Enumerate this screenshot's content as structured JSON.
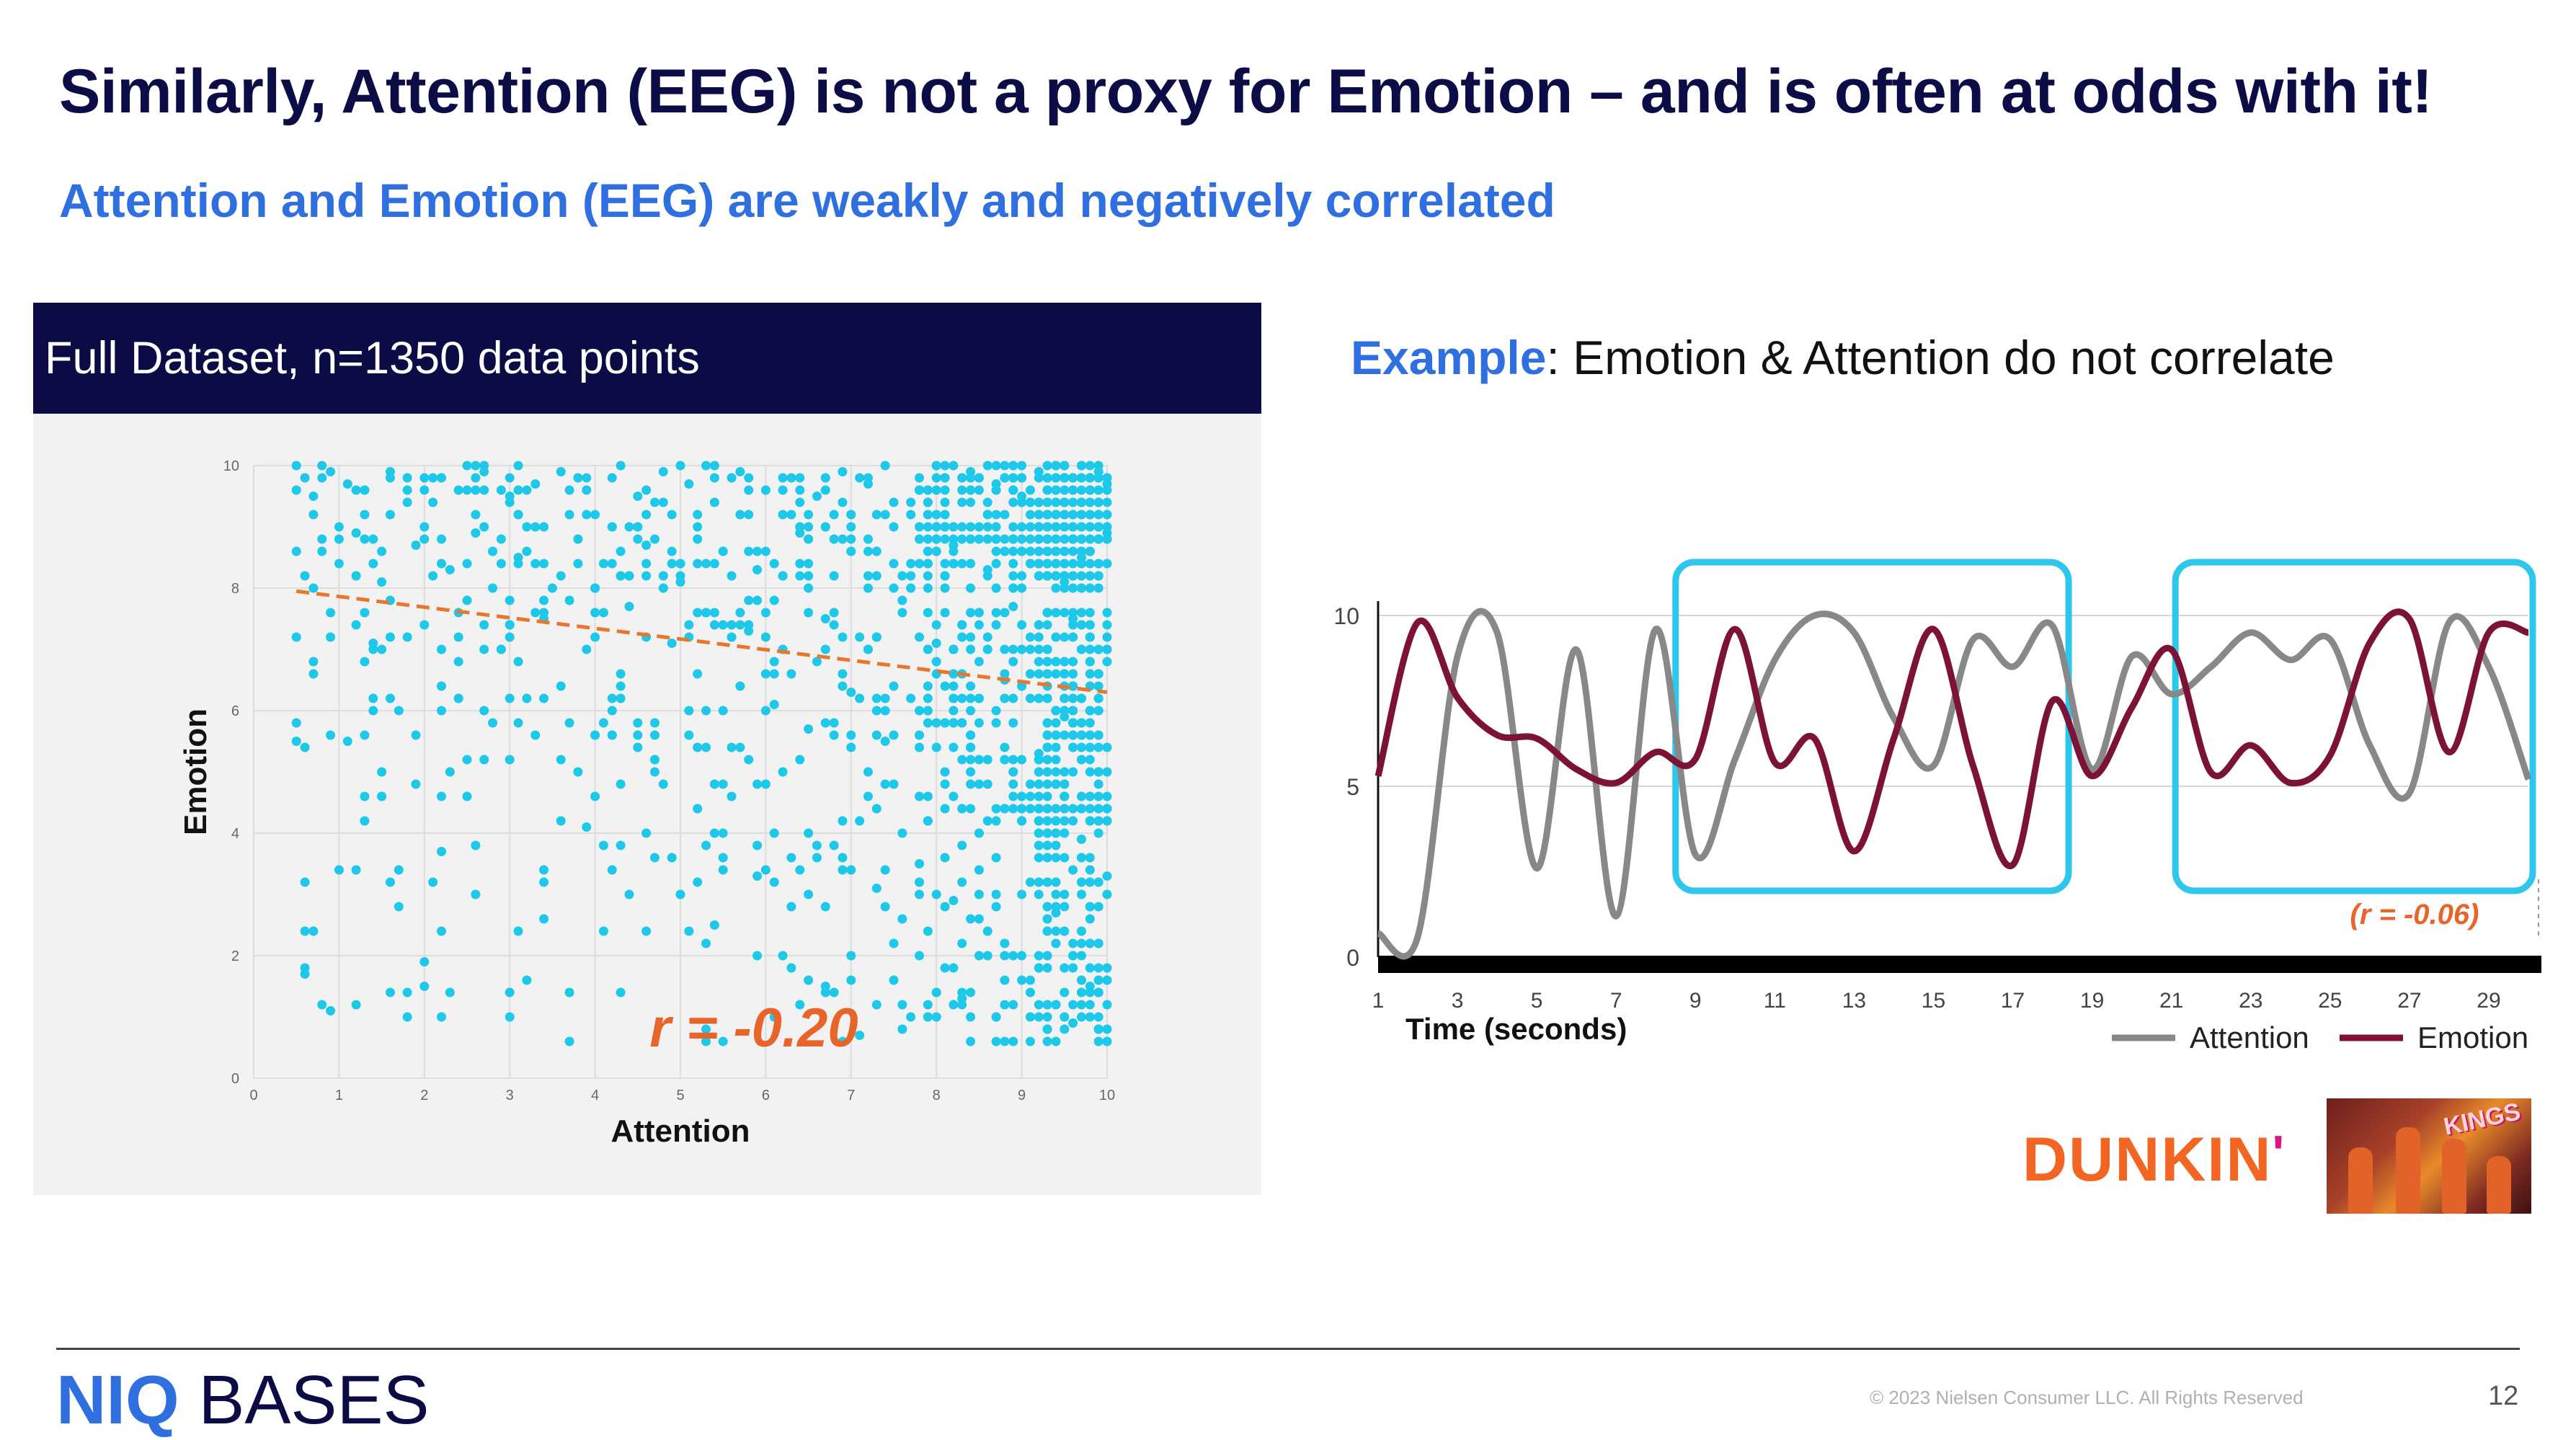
{
  "slide": {
    "title": "Similarly, Attention (EEG) is not a proxy for Emotion – and is often at odds with it!",
    "subtitle": "Attention and Emotion (EEG) are weakly and negatively correlated",
    "left_header": "Full Dataset, n=1350 data points",
    "right_heading_highlight": "Example",
    "right_heading_rest": ": Emotion & Attention do not correlate",
    "brand_logo_text": "DUNKIN",
    "brand_logo_apostrophe": "'",
    "thumbnail_text": "KINGS",
    "footer_logo_niq": "NIQ",
    "footer_logo_bases": "BASES",
    "copyright": "© 2023 Nielsen Consumer LLC. All Rights Reserved",
    "page_number": "12"
  },
  "colors": {
    "navy": "#0b0b45",
    "blue": "#2f6fe0",
    "cyan_points": "#1ec8e8",
    "trend": "#e8772e",
    "r_label": "#e8652a",
    "attention_line": "#888888",
    "emotion_line": "#7d1237",
    "highlight_box": "#2ec7ec"
  },
  "chart_data": [
    {
      "type": "scatter",
      "xlabel": "Attention",
      "ylabel": "Emotion",
      "xlim": [
        0,
        10
      ],
      "ylim": [
        0,
        10
      ],
      "x_ticks": [
        "0",
        "1",
        "2",
        "3",
        "4",
        "5",
        "6",
        "7",
        "8",
        "9",
        "10"
      ],
      "y_ticks": [
        "0",
        "2",
        "4",
        "6",
        "8",
        "10"
      ],
      "n_points": 1350,
      "sample_points": [
        [
          0.5,
          10
        ],
        [
          0.6,
          9.8
        ],
        [
          0.7,
          9.5
        ],
        [
          0.9,
          9.9
        ],
        [
          1.1,
          9.7
        ],
        [
          1.3,
          9.6
        ],
        [
          1.6,
          9.9
        ],
        [
          1.8,
          9.4
        ],
        [
          2.1,
          9.8
        ],
        [
          2.4,
          9.6
        ],
        [
          2.7,
          9.9
        ],
        [
          3.0,
          9.5
        ],
        [
          3.3,
          9.7
        ],
        [
          3.6,
          9.9
        ],
        [
          3.9,
          9.6
        ],
        [
          4.2,
          9.8
        ],
        [
          4.5,
          9.5
        ],
        [
          4.8,
          9.9
        ],
        [
          5.1,
          9.7
        ],
        [
          5.4,
          9.4
        ],
        [
          5.7,
          9.9
        ],
        [
          6.0,
          9.6
        ],
        [
          6.3,
          9.8
        ],
        [
          6.6,
          9.5
        ],
        [
          6.9,
          9.9
        ],
        [
          7.2,
          9.7
        ],
        [
          7.5,
          9.4
        ],
        [
          7.8,
          9.8
        ],
        [
          8.1,
          9.6
        ],
        [
          8.4,
          9.9
        ],
        [
          8.7,
          9.7
        ],
        [
          9.0,
          9.5
        ],
        [
          9.2,
          9.9
        ],
        [
          9.4,
          9.6
        ],
        [
          9.6,
          9.8
        ],
        [
          9.8,
          9.4
        ],
        [
          9.9,
          9.9
        ],
        [
          10,
          9.7
        ],
        [
          0.6,
          8.2
        ],
        [
          0.8,
          8.6
        ],
        [
          1.2,
          8.9
        ],
        [
          1.5,
          8.1
        ],
        [
          1.9,
          8.7
        ],
        [
          2.3,
          8.3
        ],
        [
          2.6,
          8.9
        ],
        [
          3.1,
          8.5
        ],
        [
          3.5,
          8.0
        ],
        [
          3.8,
          8.8
        ],
        [
          4.1,
          8.4
        ],
        [
          4.6,
          8.7
        ],
        [
          5.0,
          8.1
        ],
        [
          5.5,
          8.6
        ],
        [
          5.9,
          8.3
        ],
        [
          6.4,
          8.9
        ],
        [
          6.8,
          8.2
        ],
        [
          7.3,
          8.6
        ],
        [
          7.7,
          8.0
        ],
        [
          8.2,
          8.7
        ],
        [
          8.6,
          8.3
        ],
        [
          9.1,
          8.8
        ],
        [
          9.5,
          8.1
        ],
        [
          9.7,
          8.5
        ],
        [
          9.9,
          8.2
        ],
        [
          10,
          8.9
        ],
        [
          0.5,
          7.2
        ],
        [
          0.9,
          7.6
        ],
        [
          1.4,
          7.1
        ],
        [
          2.0,
          7.4
        ],
        [
          2.5,
          7.8
        ],
        [
          2.9,
          7.0
        ],
        [
          3.4,
          7.5
        ],
        [
          4.0,
          7.2
        ],
        [
          4.4,
          7.7
        ],
        [
          4.9,
          7.1
        ],
        [
          5.3,
          7.6
        ],
        [
          5.8,
          7.3
        ],
        [
          6.2,
          7.0
        ],
        [
          6.7,
          7.5
        ],
        [
          7.1,
          7.2
        ],
        [
          7.6,
          7.8
        ],
        [
          8.0,
          7.1
        ],
        [
          8.5,
          7.4
        ],
        [
          8.9,
          7.7
        ],
        [
          9.3,
          7.0
        ],
        [
          9.6,
          7.5
        ],
        [
          9.8,
          7.2
        ],
        [
          10,
          7.6
        ],
        [
          0.5,
          5.5
        ],
        [
          0.6,
          5.4
        ],
        [
          0.9,
          5.6
        ],
        [
          1.1,
          5.5
        ],
        [
          1.9,
          5.6
        ],
        [
          2.3,
          5.0
        ],
        [
          3.2,
          6.2
        ],
        [
          3.7,
          5.8
        ],
        [
          4.3,
          6.4
        ],
        [
          4.7,
          5.2
        ],
        [
          5.2,
          6.6
        ],
        [
          5.6,
          5.4
        ],
        [
          6.1,
          6.1
        ],
        [
          6.5,
          5.7
        ],
        [
          7.0,
          6.3
        ],
        [
          7.4,
          5.5
        ],
        [
          7.9,
          6.0
        ],
        [
          8.3,
          5.8
        ],
        [
          8.8,
          6.5
        ],
        [
          9.2,
          5.3
        ],
        [
          9.5,
          5.9
        ],
        [
          9.7,
          5.6
        ],
        [
          9.9,
          6.2
        ],
        [
          10,
          5.4
        ],
        [
          0.6,
          3.2
        ],
        [
          1.0,
          3.4
        ],
        [
          1.7,
          3.4
        ],
        [
          2.2,
          3.7
        ],
        [
          3.4,
          3.4
        ],
        [
          3.9,
          4.1
        ],
        [
          4.4,
          3.0
        ],
        [
          4.9,
          3.6
        ],
        [
          5.4,
          2.5
        ],
        [
          5.9,
          3.3
        ],
        [
          6.3,
          2.8
        ],
        [
          6.8,
          3.8
        ],
        [
          7.3,
          3.1
        ],
        [
          7.8,
          3.5
        ],
        [
          8.2,
          2.9
        ],
        [
          8.7,
          3.6
        ],
        [
          9.1,
          3.2
        ],
        [
          9.4,
          2.7
        ],
        [
          9.7,
          3.9
        ],
        [
          10,
          3.3
        ],
        [
          0.6,
          1.7
        ],
        [
          0.9,
          1.1
        ],
        [
          1.8,
          1.0
        ],
        [
          2.0,
          1.5
        ],
        [
          2.0,
          1.9
        ],
        [
          6.7,
          1.5
        ],
        [
          7.1,
          0.7
        ],
        [
          7.5,
          1.6
        ],
        [
          7.9,
          1.0
        ],
        [
          8.3,
          1.3
        ],
        [
          8.8,
          0.6
        ],
        [
          9.2,
          1.2
        ],
        [
          9.6,
          0.9
        ],
        [
          9.8,
          1.5
        ],
        [
          10,
          0.6
        ]
      ],
      "trend_line": {
        "x": [
          0.5,
          10
        ],
        "y": [
          7.95,
          6.3
        ]
      },
      "annotation": "r = -0.20"
    },
    {
      "type": "line",
      "xlabel": "Time (seconds)",
      "ylabel": "",
      "xlim": [
        1,
        30
      ],
      "ylim": [
        0,
        10
      ],
      "x": [
        1,
        2,
        3,
        4,
        5,
        6,
        7,
        8,
        9,
        10,
        11,
        12,
        13,
        14,
        15,
        16,
        17,
        18,
        19,
        20,
        21,
        22,
        23,
        24,
        25,
        26,
        27,
        28,
        29,
        30
      ],
      "x_ticks": [
        "1",
        "3",
        "5",
        "7",
        "9",
        "11",
        "13",
        "15",
        "17",
        "19",
        "21",
        "23",
        "25",
        "27",
        "29"
      ],
      "y_ticks": [
        "0",
        "5",
        "10"
      ],
      "series": [
        {
          "name": "Attention",
          "values": [
            0.7,
            0.6,
            8.8,
            9.5,
            2.6,
            9.0,
            1.2,
            9.6,
            3.0,
            5.8,
            8.7,
            10.0,
            9.5,
            7.0,
            5.6,
            9.3,
            8.5,
            9.7,
            5.5,
            8.8,
            7.7,
            8.5,
            9.5,
            8.7,
            9.3,
            6.2,
            4.8,
            9.8,
            8.5,
            5.2
          ]
        },
        {
          "name": "Emotion",
          "values": [
            5.3,
            9.8,
            7.6,
            6.5,
            6.4,
            5.5,
            5.1,
            6.0,
            5.8,
            9.6,
            5.7,
            6.4,
            3.1,
            6.4,
            9.6,
            5.6,
            2.7,
            7.5,
            5.3,
            7.3,
            9.0,
            5.4,
            6.2,
            5.1,
            5.9,
            9.2,
            9.9,
            6.0,
            9.5,
            9.5
          ]
        }
      ],
      "highlight_ranges": [
        [
          8.5,
          18.3
        ],
        [
          21.1,
          30
        ]
      ],
      "annotation": "(r = -0.06)"
    }
  ]
}
